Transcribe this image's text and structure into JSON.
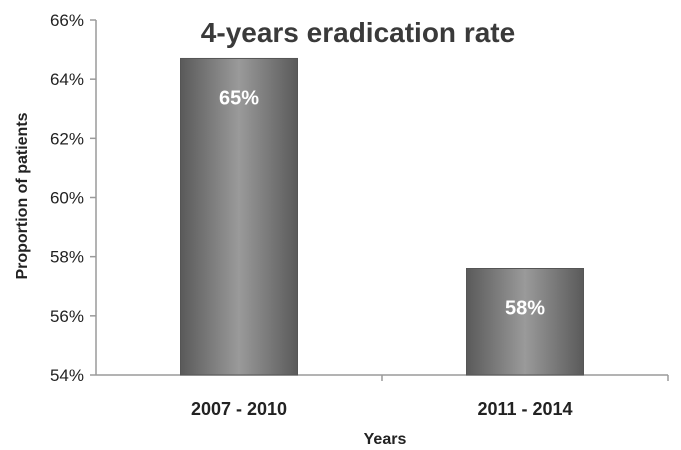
{
  "chart_data": {
    "type": "bar",
    "title": "4-years eradication rate",
    "xlabel": "Years",
    "ylabel": "Proportion of patients",
    "categories": [
      "2007 - 2010",
      "2011 - 2014"
    ],
    "values": [
      64.7,
      57.6
    ],
    "data_labels": [
      "65%",
      "58%"
    ],
    "ylim": [
      54,
      66
    ],
    "yticks": [
      54,
      56,
      58,
      60,
      62,
      64,
      66
    ],
    "ytick_labels": [
      "54%",
      "56%",
      "58%",
      "60%",
      "62%",
      "64%",
      "66%"
    ],
    "grid": false,
    "legend": "none",
    "bar_color": "#7a7a7a",
    "bar_gradient_light": "#9a9a9a",
    "bar_gradient_dark": "#5a5a5a"
  }
}
